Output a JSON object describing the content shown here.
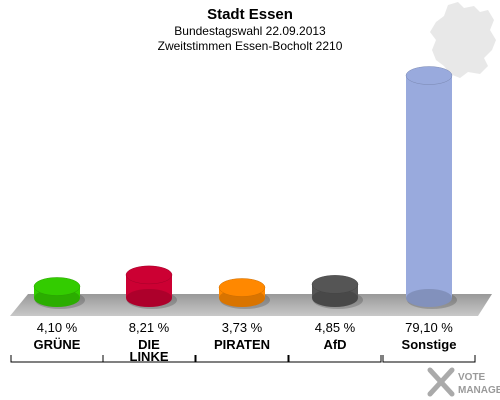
{
  "chart_data": {
    "type": "bar",
    "title": "Stadt Essen",
    "subtitle_lines": [
      "Bundestagswahl 22.09.2013",
      "Zweitstimmen Essen-Bocholt 2210"
    ],
    "categories": [
      [
        "GRÜNE"
      ],
      [
        "DIE",
        "LINKE"
      ],
      [
        "PIRATEN"
      ],
      [
        "AfD"
      ],
      [
        "Sonstige"
      ]
    ],
    "values": [
      4.1,
      8.21,
      3.73,
      4.85,
      79.1
    ],
    "value_labels": [
      "4,10 %",
      "8,21 %",
      "3,73 %",
      "4,85 %",
      "79,10 %"
    ],
    "colors": [
      "#33cc00",
      "#cc0033",
      "#ff8800",
      "#555555",
      "#99aadd"
    ],
    "ylim": [
      0,
      80
    ],
    "legend": "none",
    "grid": false
  },
  "branding": {
    "line1": "VOTE",
    "line2": "MANAGER",
    "colors": {
      "icon": "#aaaaaa",
      "text": "#9a9a9a"
    }
  },
  "colors": {
    "platform": "#b3b3b3",
    "germany_map": "#e8e8e8"
  }
}
